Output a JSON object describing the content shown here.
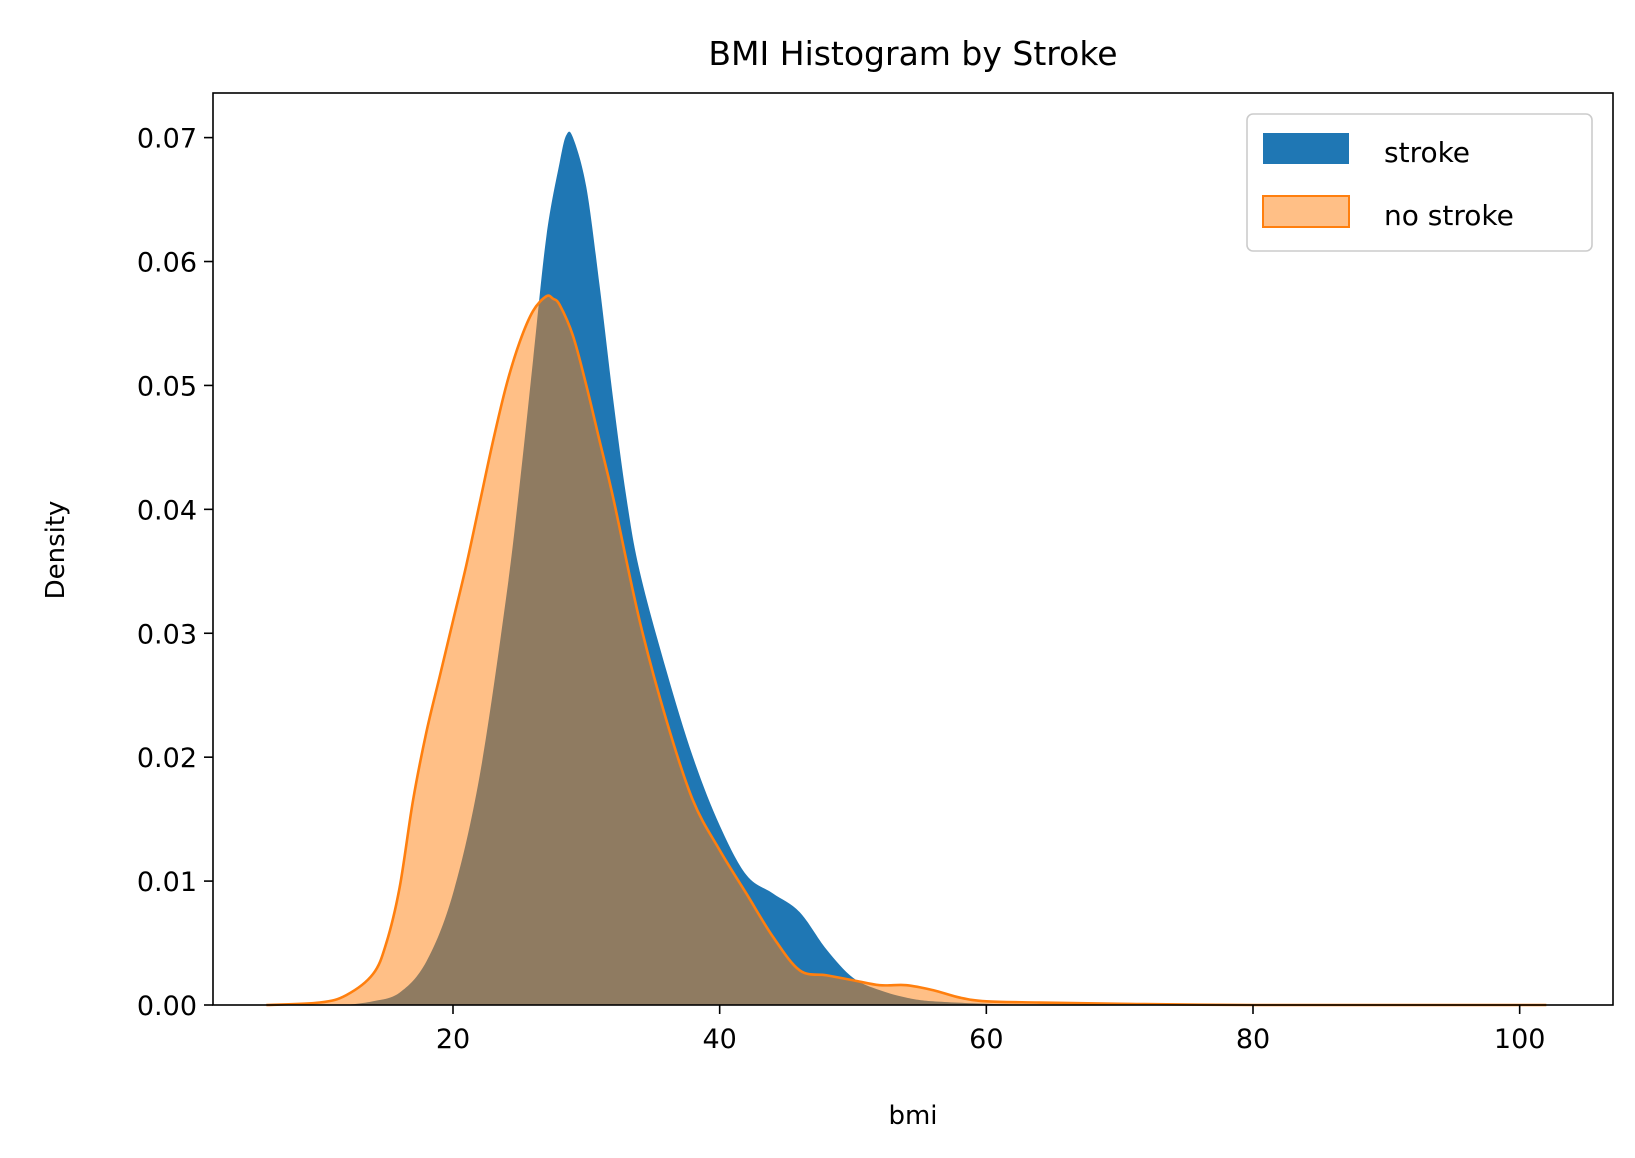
{
  "chart_data": {
    "type": "area",
    "title": "BMI Histogram by Stroke",
    "xlabel": "bmi",
    "ylabel": "Density",
    "xlim": [
      2,
      107
    ],
    "ylim": [
      0,
      0.0736
    ],
    "xticks": [
      20,
      40,
      60,
      80,
      100
    ],
    "xtick_labels": [
      "20",
      "40",
      "60",
      "80",
      "100"
    ],
    "yticks": [
      0,
      0.01,
      0.02,
      0.03,
      0.04,
      0.05,
      0.06,
      0.07
    ],
    "ytick_labels": [
      "0.00",
      "0.01",
      "0.02",
      "0.03",
      "0.04",
      "0.05",
      "0.06",
      "0.07"
    ],
    "grid": false,
    "legend_position": "top-right",
    "series": [
      {
        "name": "stroke",
        "color": "#1f77b4",
        "alpha": 1.0,
        "outline": false,
        "points": [
          [
            12,
            0.0
          ],
          [
            14,
            0.0003
          ],
          [
            16,
            0.001
          ],
          [
            18,
            0.0035
          ],
          [
            20,
            0.009
          ],
          [
            22,
            0.0185
          ],
          [
            24,
            0.033
          ],
          [
            25,
            0.042
          ],
          [
            26,
            0.052
          ],
          [
            27,
            0.062
          ],
          [
            28,
            0.068
          ],
          [
            28.5,
            0.0702
          ],
          [
            29,
            0.07
          ],
          [
            30,
            0.066
          ],
          [
            31,
            0.058
          ],
          [
            32,
            0.049
          ],
          [
            33,
            0.041
          ],
          [
            34,
            0.035
          ],
          [
            36,
            0.027
          ],
          [
            38,
            0.02
          ],
          [
            40,
            0.0145
          ],
          [
            42,
            0.0105
          ],
          [
            44,
            0.009
          ],
          [
            46,
            0.0075
          ],
          [
            48,
            0.0045
          ],
          [
            50,
            0.0022
          ],
          [
            52,
            0.0012
          ],
          [
            54,
            0.0006
          ],
          [
            56,
            0.0003
          ],
          [
            60,
            0.0001
          ],
          [
            64,
            0.0
          ]
        ]
      },
      {
        "name": "no stroke",
        "color": "#ff7f0e",
        "alpha": 0.5,
        "outline": true,
        "points": [
          [
            6,
            0.0
          ],
          [
            10,
            0.0002
          ],
          [
            12,
            0.0008
          ],
          [
            14,
            0.0025
          ],
          [
            15,
            0.005
          ],
          [
            16,
            0.0095
          ],
          [
            17,
            0.0165
          ],
          [
            18,
            0.022
          ],
          [
            19,
            0.0265
          ],
          [
            20,
            0.031
          ],
          [
            21,
            0.0355
          ],
          [
            22,
            0.0405
          ],
          [
            23,
            0.0455
          ],
          [
            24,
            0.05
          ],
          [
            25,
            0.0535
          ],
          [
            26,
            0.056
          ],
          [
            27,
            0.0572
          ],
          [
            27.5,
            0.057
          ],
          [
            28,
            0.0565
          ],
          [
            29,
            0.054
          ],
          [
            30,
            0.05
          ],
          [
            31,
            0.0455
          ],
          [
            32,
            0.041
          ],
          [
            34,
            0.031
          ],
          [
            36,
            0.023
          ],
          [
            38,
            0.0165
          ],
          [
            40,
            0.0125
          ],
          [
            42,
            0.009
          ],
          [
            44,
            0.0055
          ],
          [
            46,
            0.0028
          ],
          [
            48,
            0.0024
          ],
          [
            50,
            0.002
          ],
          [
            52,
            0.0016
          ],
          [
            54,
            0.0016
          ],
          [
            56,
            0.0012
          ],
          [
            58,
            0.0006
          ],
          [
            60,
            0.0003
          ],
          [
            64,
            0.0002
          ],
          [
            70,
            0.0001
          ],
          [
            80,
            0.0
          ],
          [
            102,
            0.0
          ]
        ]
      }
    ]
  }
}
